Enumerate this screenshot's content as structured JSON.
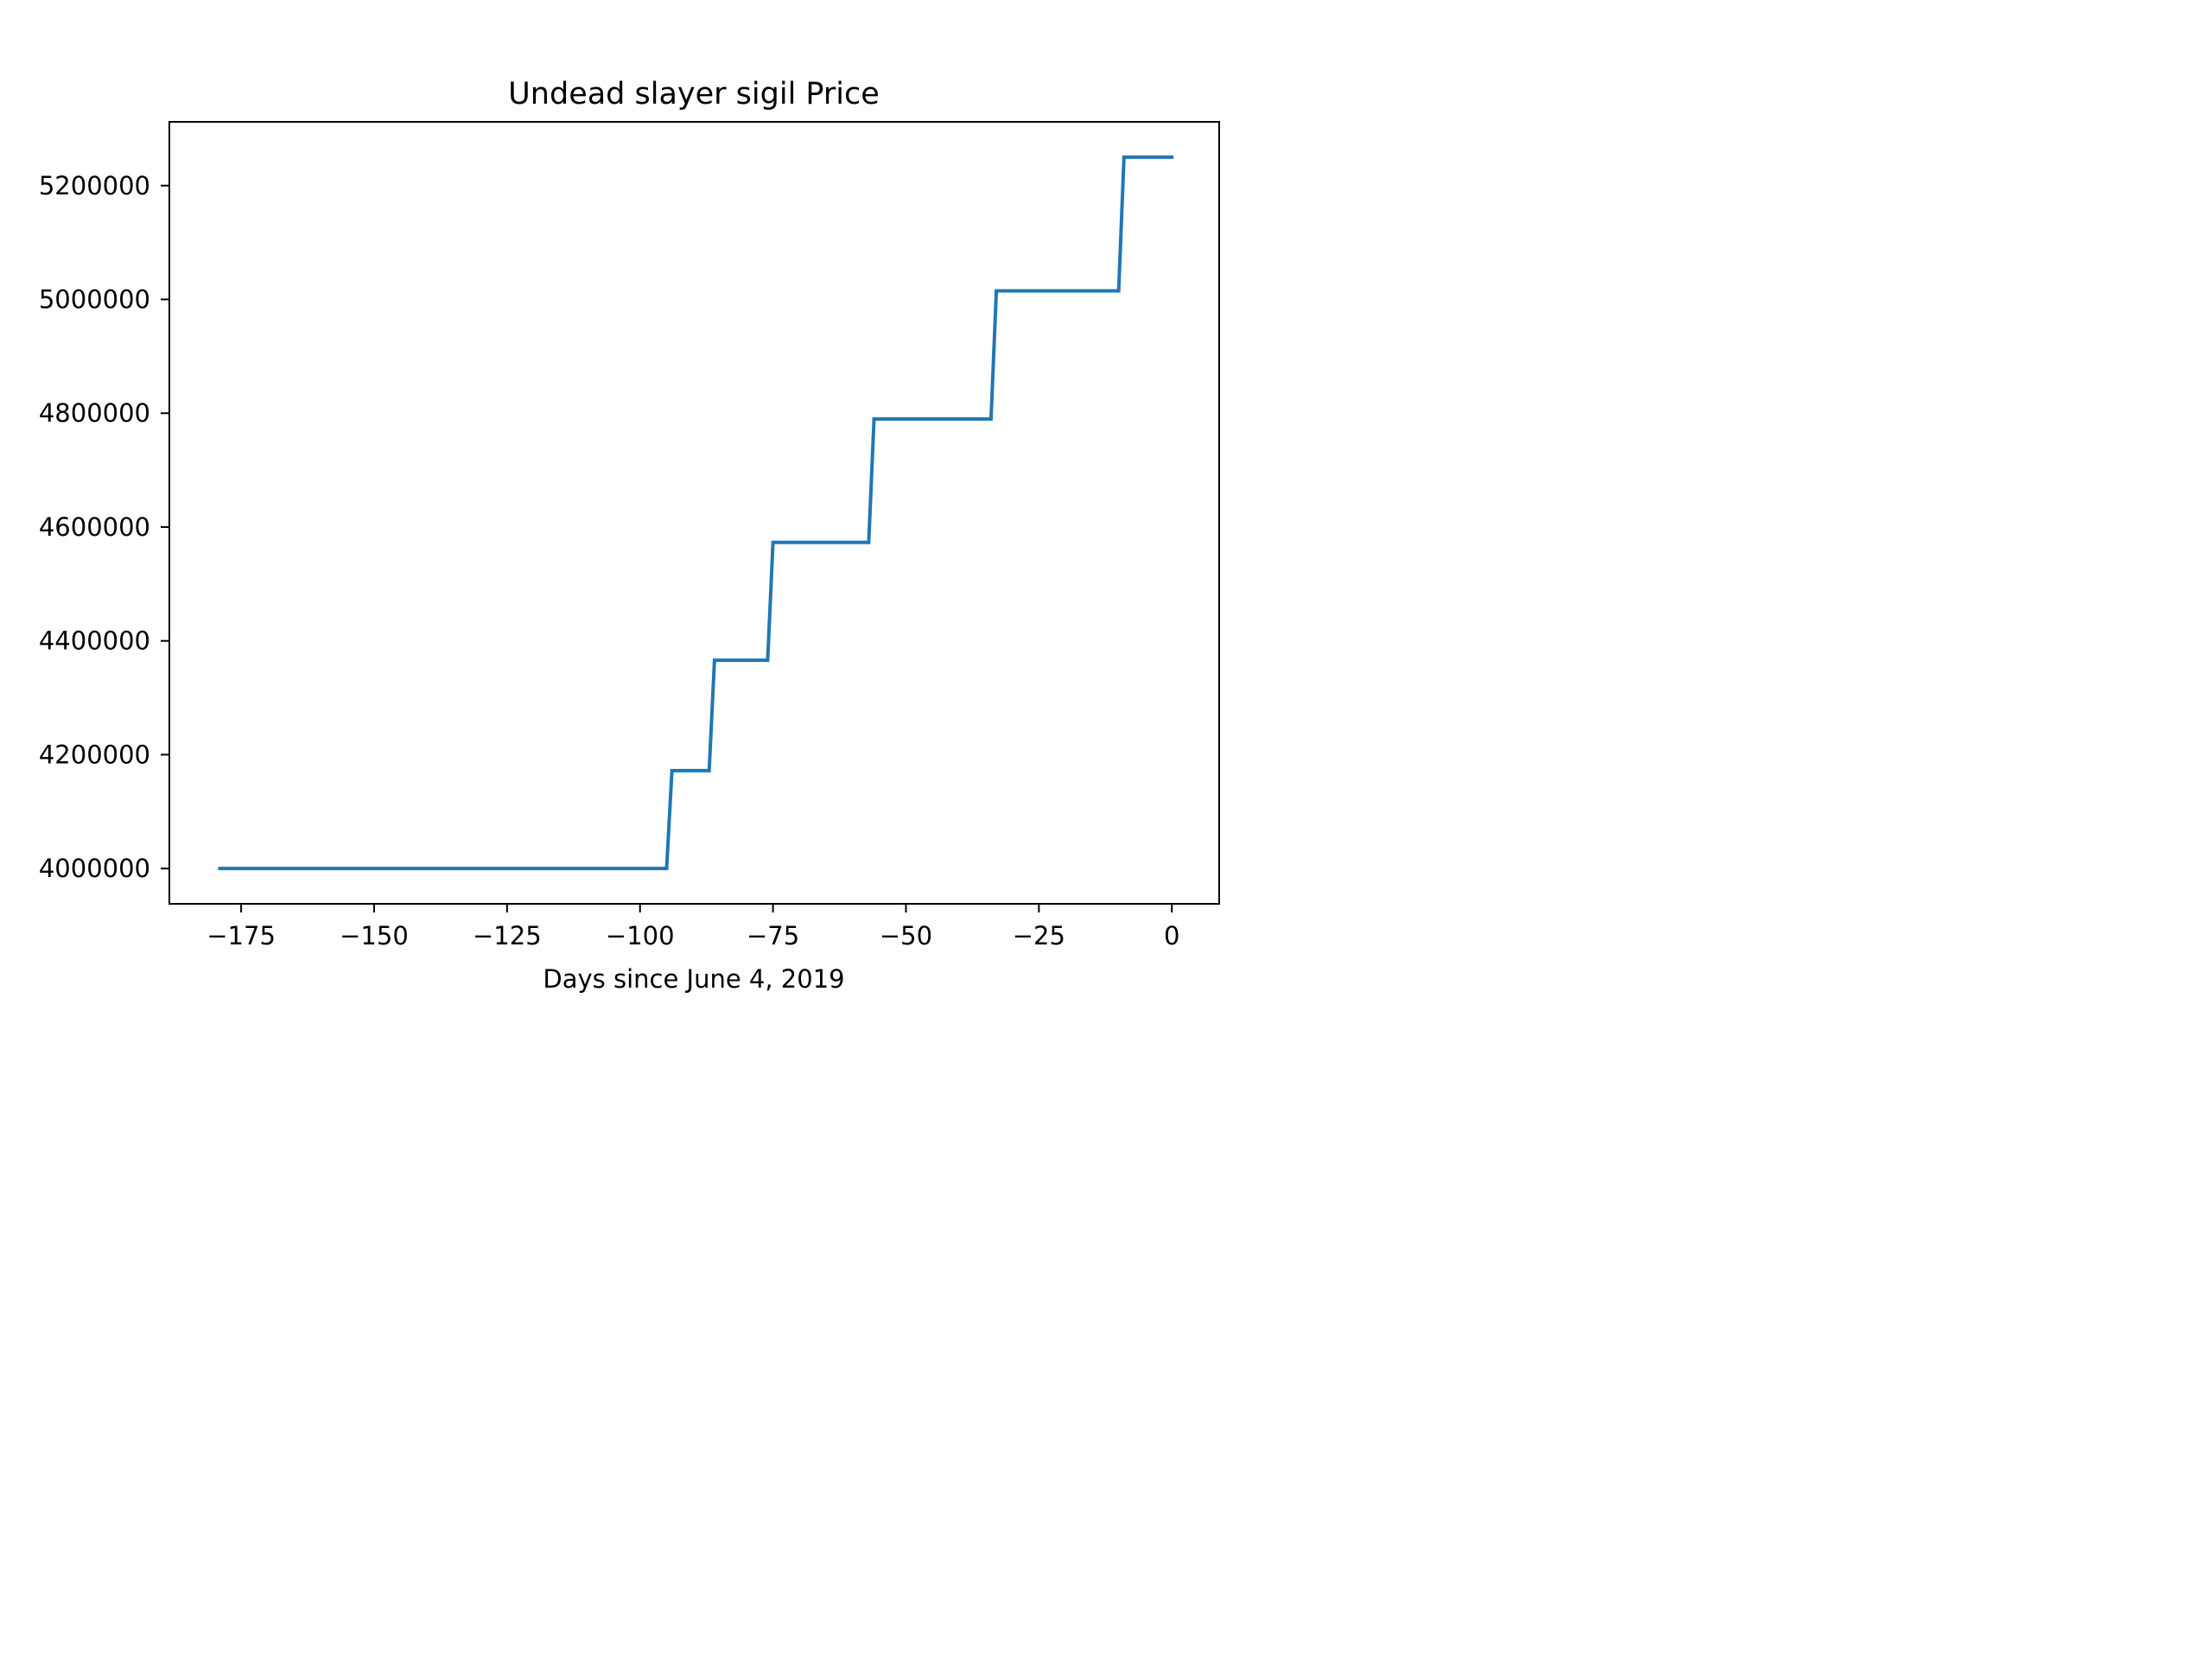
{
  "chart_data": {
    "type": "line",
    "title": "Undead slayer sigil Price",
    "xlabel": "Days since June 4, 2019",
    "ylabel": "",
    "xlim": [
      -188.5,
      8.9
    ],
    "ylim": [
      3938000,
      5312000
    ],
    "x_ticks": [
      -175,
      -150,
      -125,
      -100,
      -75,
      -50,
      -25,
      0
    ],
    "x_tick_labels": [
      "−175",
      "−150",
      "−125",
      "−100",
      "−75",
      "−50",
      "−25",
      "0"
    ],
    "y_ticks": [
      4000000,
      4200000,
      4400000,
      4600000,
      4800000,
      5000000,
      5200000
    ],
    "y_tick_labels": [
      "4000000",
      "4200000",
      "4400000",
      "4600000",
      "4800000",
      "5000000",
      "5200000"
    ],
    "grid": false,
    "series": [
      {
        "color": "#1f77b4",
        "x": [
          -179,
          -95,
          -94,
          -87,
          -86,
          -76,
          -75,
          -57,
          -56,
          -34,
          -33,
          -10,
          -9,
          0
        ],
        "y": [
          4000000,
          4000000,
          4172000,
          4172000,
          4366000,
          4366000,
          4573000,
          4573000,
          4790000,
          4790000,
          5015000,
          5015000,
          5250000,
          5250000
        ]
      }
    ]
  }
}
